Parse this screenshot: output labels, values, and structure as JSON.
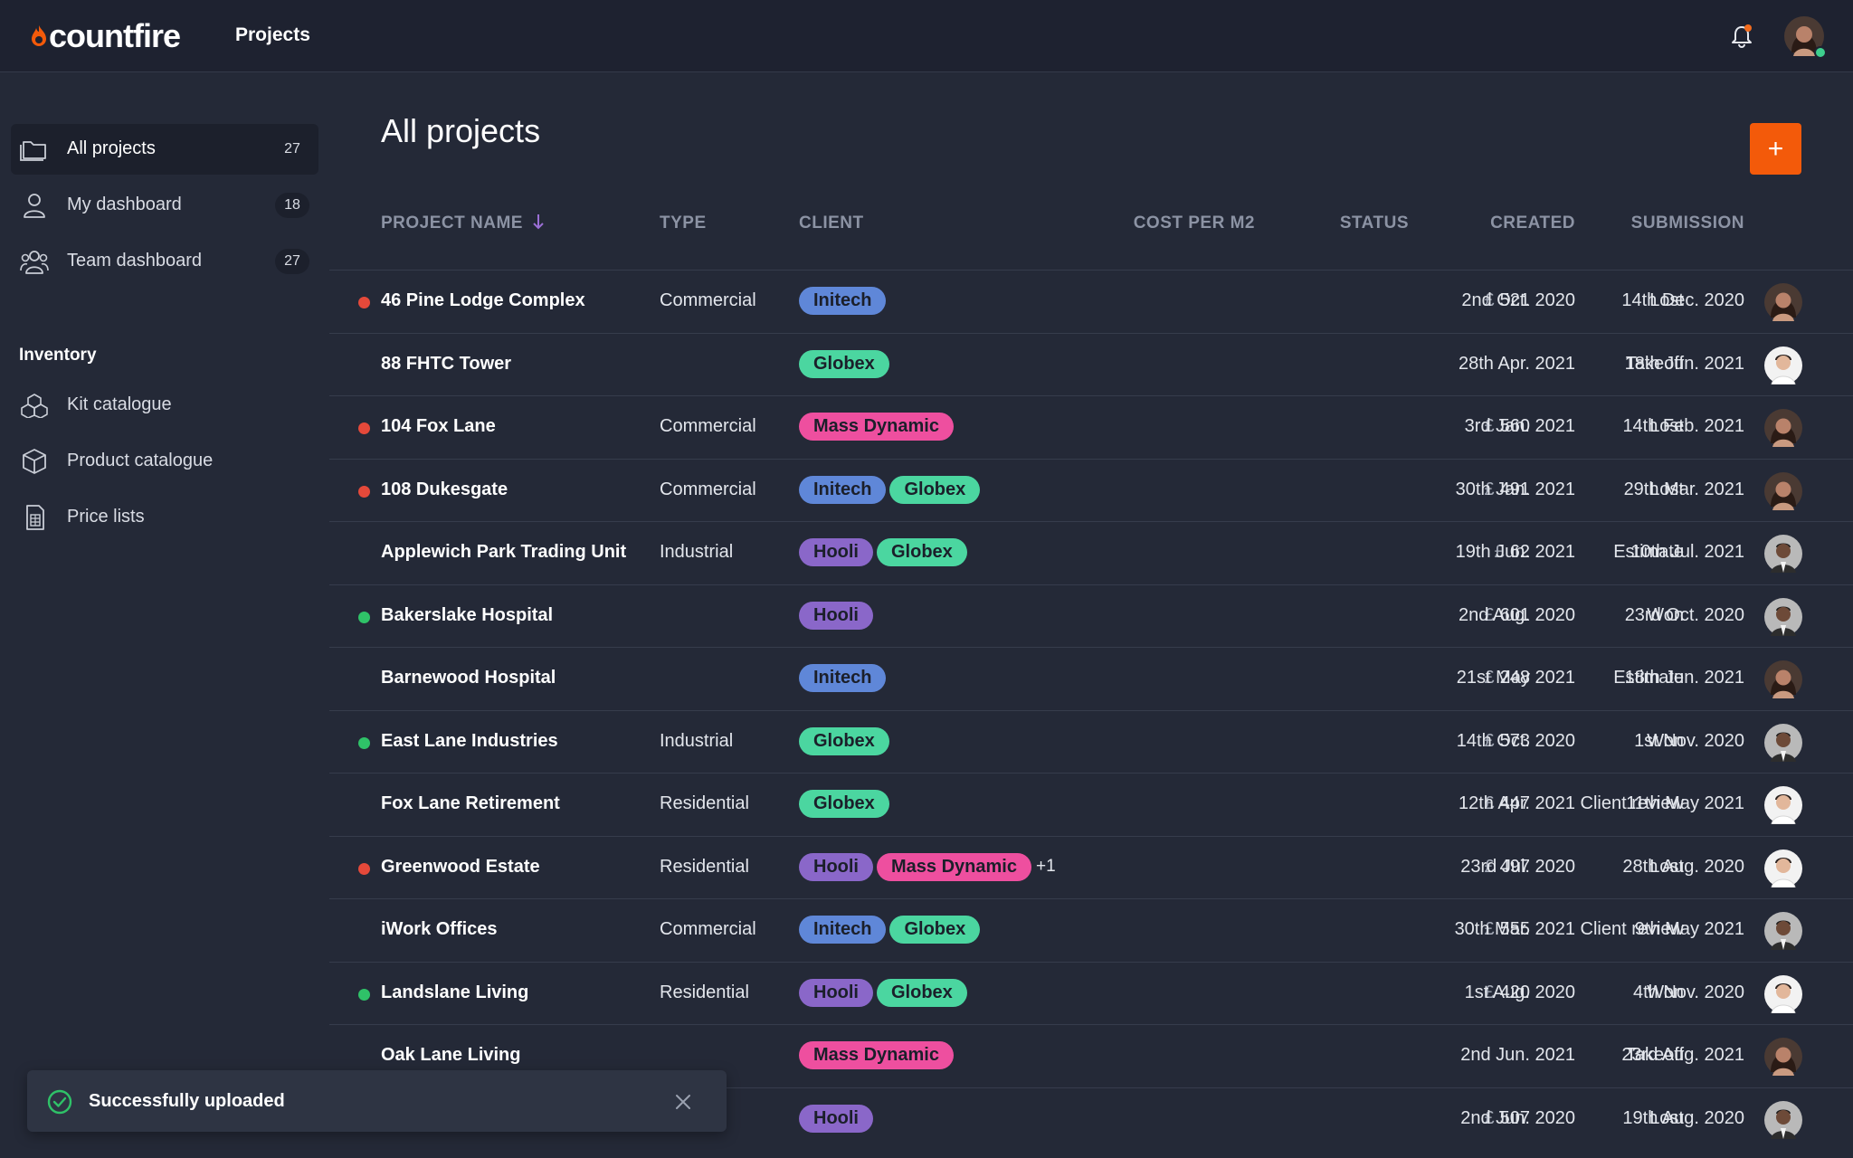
{
  "header": {
    "logo_text": "countfire",
    "nav_label": "Projects"
  },
  "sidebar": {
    "items": [
      {
        "label": "All projects",
        "count": "27"
      },
      {
        "label": "My dashboard",
        "count": "18"
      },
      {
        "label": "Team dashboard",
        "count": "27"
      }
    ],
    "inventory_heading": "Inventory",
    "inventory_items": [
      {
        "label": "Kit catalogue"
      },
      {
        "label": "Product catalogue"
      },
      {
        "label": "Price lists"
      }
    ]
  },
  "main": {
    "title": "All projects",
    "add_label": "+",
    "columns": {
      "project_name": "PROJECT NAME",
      "type": "TYPE",
      "client": "CLIENT",
      "cost": "COST PER M2",
      "status": "STATUS",
      "created": "CREATED",
      "submission": "SUBMISSION"
    },
    "currency": "£",
    "rows": [
      {
        "name": "46 Pine Lodge Complex",
        "type": "Commercial",
        "clients": [
          "Initech"
        ],
        "more": "",
        "cost": "521",
        "status": "Lost",
        "created": "2nd Oct. 2020",
        "submission": "14th Dec. 2020",
        "indicator": "lost",
        "avatar": "woman"
      },
      {
        "name": "88 FHTC Tower",
        "type": "",
        "clients": [
          "Globex"
        ],
        "more": "",
        "cost": "",
        "status": "Takeoff",
        "created": "28th Apr. 2021",
        "submission": "18th Jun. 2021",
        "indicator": "",
        "avatar": "man-light"
      },
      {
        "name": "104 Fox Lane",
        "type": "Commercial",
        "clients": [
          "Mass Dynamic"
        ],
        "more": "",
        "cost": "560",
        "status": "Lost",
        "created": "3rd Jan. 2021",
        "submission": "14th Feb. 2021",
        "indicator": "lost",
        "avatar": "woman"
      },
      {
        "name": "108 Dukesgate",
        "type": "Commercial",
        "clients": [
          "Initech",
          "Globex"
        ],
        "more": "",
        "cost": "491",
        "status": "Lost",
        "created": "30th Jan. 2021",
        "submission": "29th Mar. 2021",
        "indicator": "lost",
        "avatar": "woman"
      },
      {
        "name": "Applewich Park Trading Unit",
        "type": "Industrial",
        "clients": [
          "Hooli",
          "Globex"
        ],
        "more": "",
        "cost": "62",
        "status": "Estimate",
        "created": "19th Jun. 2021",
        "submission": "10th Jul. 2021",
        "indicator": "",
        "avatar": "man-dark"
      },
      {
        "name": "Bakerslake Hospital",
        "type": "",
        "clients": [
          "Hooli"
        ],
        "more": "",
        "cost": "601",
        "status": "Won",
        "created": "2nd Aug. 2020",
        "submission": "23rd Oct. 2020",
        "indicator": "won",
        "avatar": "man-dark"
      },
      {
        "name": "Barnewood Hospital",
        "type": "",
        "clients": [
          "Initech"
        ],
        "more": "",
        "cost": "248",
        "status": "Estimate",
        "created": "21st May 2021",
        "submission": "18th Jun. 2021",
        "indicator": "",
        "avatar": "woman"
      },
      {
        "name": "East Lane Industries",
        "type": "Industrial",
        "clients": [
          "Globex"
        ],
        "more": "",
        "cost": "573",
        "status": "Won",
        "created": "14th Oct. 2020",
        "submission": "1st Nov. 2020",
        "indicator": "won",
        "avatar": "man-dark"
      },
      {
        "name": "Fox Lane Retirement",
        "type": "Residential",
        "clients": [
          "Globex"
        ],
        "more": "",
        "cost": "447",
        "status": "Client review",
        "created": "12th Apr. 2021",
        "submission": "11th May 2021",
        "indicator": "",
        "avatar": "man-light"
      },
      {
        "name": "Greenwood Estate",
        "type": "Residential",
        "clients": [
          "Hooli",
          "Mass Dynamic"
        ],
        "more": "+1",
        "cost": "497",
        "status": "Lost",
        "created": "23rd Jul. 2020",
        "submission": "28th Aug. 2020",
        "indicator": "lost",
        "avatar": "man-light"
      },
      {
        "name": "iWork Offices",
        "type": "Commercial",
        "clients": [
          "Initech",
          "Globex"
        ],
        "more": "",
        "cost": "555",
        "status": "Client review",
        "created": "30th Mar. 2021",
        "submission": "9th May 2021",
        "indicator": "",
        "avatar": "man-dark"
      },
      {
        "name": "Landslane Living",
        "type": "Residential",
        "clients": [
          "Hooli",
          "Globex"
        ],
        "more": "",
        "cost": "420",
        "status": "Won",
        "created": "1st Aug. 2020",
        "submission": "4th Nov. 2020",
        "indicator": "won",
        "avatar": "man-light"
      },
      {
        "name": "Oak Lane Living",
        "type": "",
        "clients": [
          "Mass Dynamic"
        ],
        "more": "",
        "cost": "",
        "status": "Takeoff",
        "created": "2nd Jun. 2021",
        "submission": "23rd Aug. 2021",
        "indicator": "",
        "avatar": "woman"
      },
      {
        "name": "",
        "type": "ential",
        "clients": [
          "Hooli"
        ],
        "more": "",
        "cost": "507",
        "status": "Lost",
        "created": "2nd Jun. 2020",
        "submission": "19th Aug. 2020",
        "indicator": "",
        "avatar": "man-dark"
      }
    ]
  },
  "toast": {
    "message": "Successfully uploaded"
  },
  "colors": {
    "accent": "#f35a0a",
    "background": "#242937",
    "header": "#1e2230",
    "lost": "#e5493a",
    "won": "#2fc268",
    "initech": "#5f87d8",
    "globex": "#4bd6a0",
    "hooli": "#8a67c9",
    "mass_dynamic": "#ee4f9f"
  }
}
